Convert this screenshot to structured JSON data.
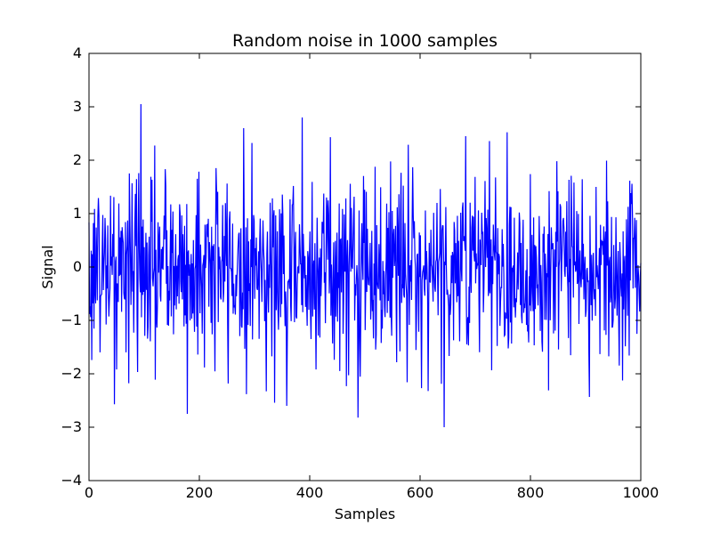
{
  "chart_data": {
    "type": "line",
    "title": "Random noise in 1000 samples",
    "xlabel": "Samples",
    "ylabel": "Signal",
    "xlim": [
      0,
      1000
    ],
    "ylim": [
      -4,
      4
    ],
    "xticks": [
      0,
      200,
      400,
      600,
      800,
      1000
    ],
    "yticks": [
      -4,
      -3,
      -2,
      -1,
      0,
      1,
      2,
      3,
      4
    ],
    "xtick_labels": [
      "0",
      "200",
      "400",
      "600",
      "800",
      "1000"
    ],
    "ytick_labels": [
      "−4",
      "−3",
      "−2",
      "−1",
      "0",
      "1",
      "2",
      "3",
      "4"
    ],
    "grid": false,
    "series": [
      {
        "color": "#0000ff",
        "n_samples": 1000,
        "distribution": "standard normal noise",
        "notable_points": [
          {
            "x": 94,
            "y": 3.05
          },
          {
            "x": 178,
            "y": -2.75
          },
          {
            "x": 487,
            "y": -2.82
          },
          {
            "x": 643,
            "y": -3.0
          },
          {
            "x": 46,
            "y": -2.57
          },
          {
            "x": 358,
            "y": -2.6
          },
          {
            "x": 682,
            "y": 2.45
          },
          {
            "x": 386,
            "y": 2.8
          }
        ]
      }
    ]
  }
}
